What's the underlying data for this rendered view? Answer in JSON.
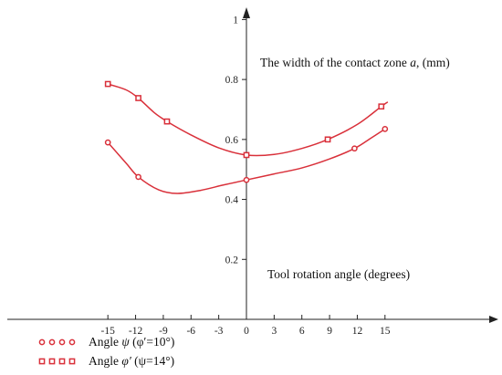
{
  "chart_data": {
    "type": "line",
    "ylabel": "The width of the contact zone a, (mm)",
    "xlabel": "Tool rotation angle (degrees)",
    "xlim": [
      -15,
      15
    ],
    "ylim": [
      0,
      1.05
    ],
    "x_ticks": [
      -15,
      -12,
      -9,
      -6,
      -3,
      0,
      3,
      6,
      9,
      12,
      15
    ],
    "y_ticks": [
      0.2,
      0.4,
      0.6,
      0.8,
      1
    ],
    "x_tick_labels": [
      "-15",
      "-12",
      "-9",
      "-6",
      "-3",
      "0",
      "3",
      "6",
      "9",
      "12",
      "15"
    ],
    "y_tick_labels": [
      "0.2",
      "0.4",
      "0.6",
      "0.8",
      "1"
    ],
    "grid": false,
    "legend_placement": "bottom-left",
    "series": [
      {
        "name": "Angle ψ (φ′=10°)",
        "marker": "circle",
        "color": "#d9303a",
        "points": [
          [
            -15,
            0.59
          ],
          [
            -11.7,
            0.475
          ],
          [
            0,
            0.465
          ],
          [
            11.7,
            0.57
          ],
          [
            15,
            0.635
          ]
        ],
        "curve": [
          [
            -15,
            0.59
          ],
          [
            -13,
            0.52
          ],
          [
            -11.7,
            0.475
          ],
          [
            -9.5,
            0.432
          ],
          [
            -7.5,
            0.42
          ],
          [
            -5,
            0.43
          ],
          [
            -2.5,
            0.448
          ],
          [
            0,
            0.465
          ],
          [
            3,
            0.485
          ],
          [
            6,
            0.505
          ],
          [
            9,
            0.535
          ],
          [
            11.7,
            0.57
          ],
          [
            13.5,
            0.605
          ],
          [
            15,
            0.635
          ]
        ]
      },
      {
        "name": "Angle φ′ (ψ=14°)",
        "marker": "square",
        "color": "#d9303a",
        "points": [
          [
            -15,
            0.785
          ],
          [
            -11.7,
            0.738
          ],
          [
            -8.6,
            0.66
          ],
          [
            0,
            0.548
          ],
          [
            8.8,
            0.6
          ],
          [
            14.6,
            0.71
          ]
        ],
        "curve": [
          [
            -15,
            0.785
          ],
          [
            -13,
            0.765
          ],
          [
            -11.7,
            0.738
          ],
          [
            -10,
            0.69
          ],
          [
            -8.6,
            0.66
          ],
          [
            -6,
            0.615
          ],
          [
            -3,
            0.572
          ],
          [
            0,
            0.548
          ],
          [
            3,
            0.55
          ],
          [
            6,
            0.57
          ],
          [
            8.8,
            0.6
          ],
          [
            12,
            0.65
          ],
          [
            14.6,
            0.71
          ],
          [
            15.3,
            0.725
          ]
        ]
      }
    ]
  },
  "legend": {
    "items": [
      {
        "prefix": "Angle ",
        "symbol": "ψ",
        "paren": "(φ′=10°)"
      },
      {
        "prefix": "Angle ",
        "symbol": "φ′",
        "paren": "(ψ=14°)"
      }
    ]
  }
}
